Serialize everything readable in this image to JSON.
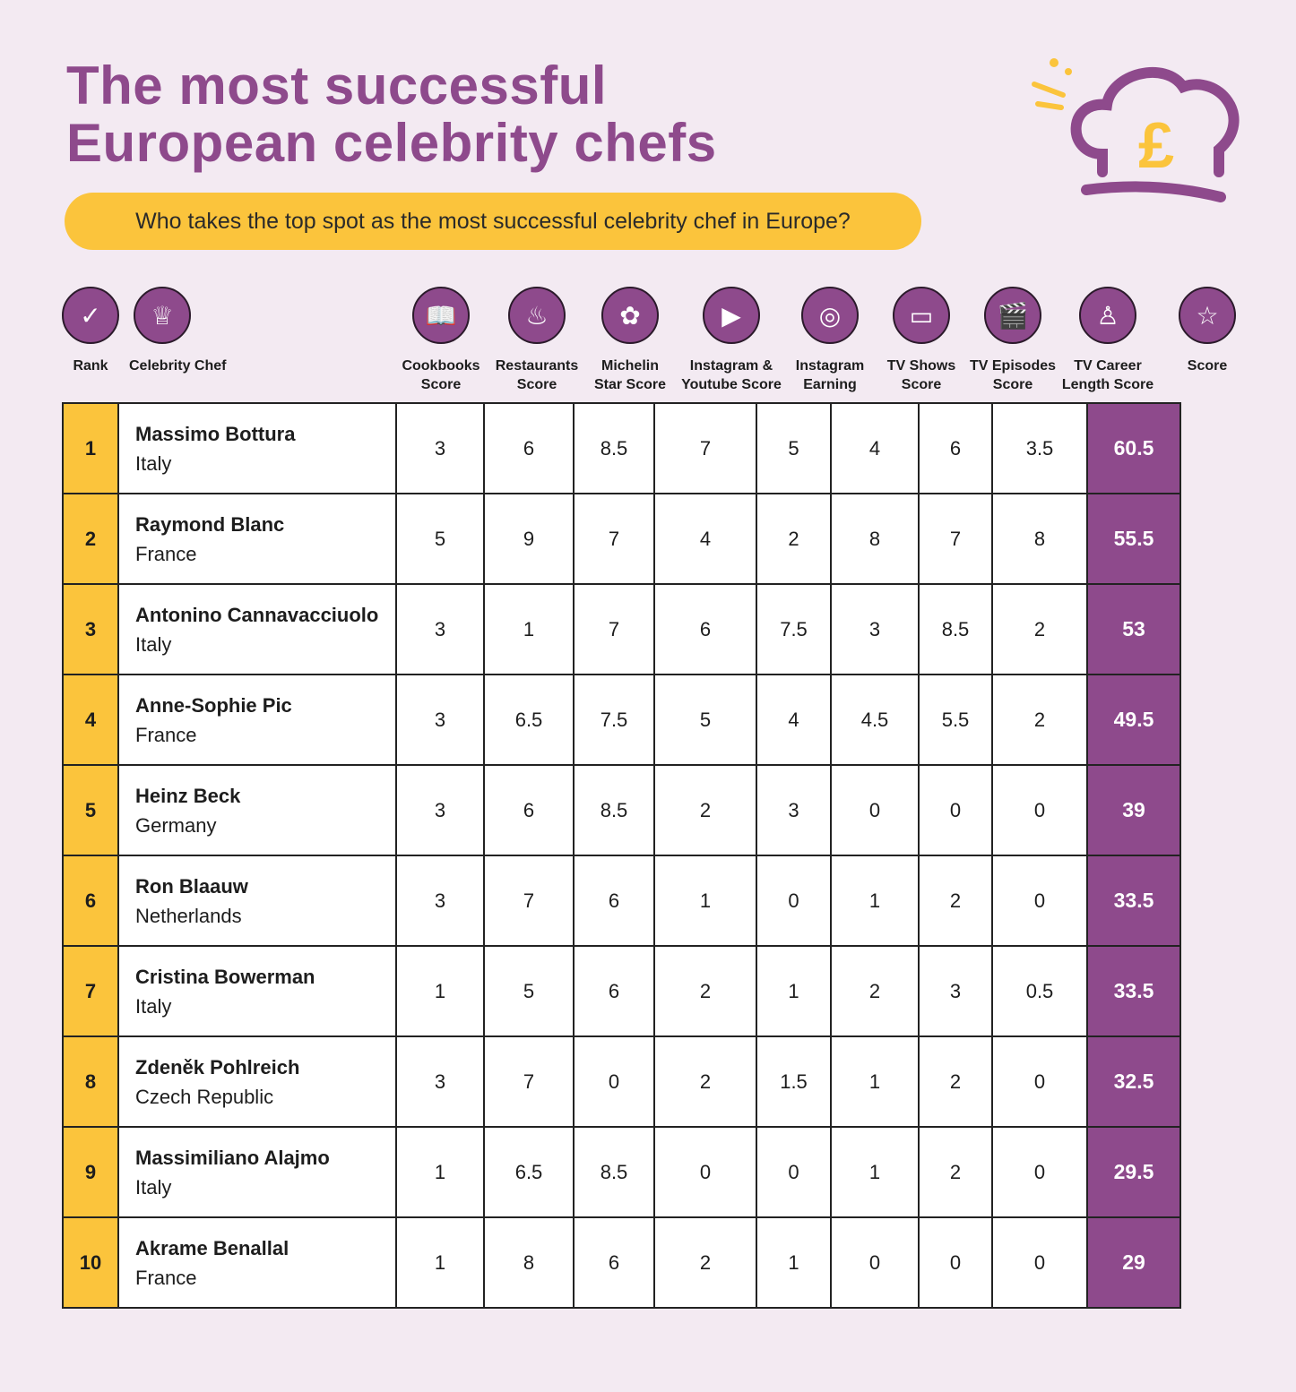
{
  "title_line1": "The most successful",
  "title_line2": "European celebrity chefs",
  "subtitle": "Who takes the top spot as the most successful celebrity chef in Europe?",
  "logo_symbol": "£",
  "colors": {
    "purple": "#8e4a8c",
    "yellow": "#fbc43c",
    "background": "#f3eaf2"
  },
  "chart_data": {
    "type": "table",
    "columns": [
      {
        "label1": "Rank",
        "label2": "",
        "icon": "check-icon"
      },
      {
        "label1": "Celebrity Chef",
        "label2": "",
        "icon": "chef-hat-icon"
      },
      {
        "label1": "Cookbooks",
        "label2": "Score",
        "icon": "book-icon"
      },
      {
        "label1": "Restaurants",
        "label2": "Score",
        "icon": "bowl-icon"
      },
      {
        "label1": "Michelin",
        "label2": "Star Score",
        "icon": "flower-icon"
      },
      {
        "label1": "Instagram &",
        "label2": "Youtube Score",
        "icon": "reels-icon"
      },
      {
        "label1": "Instagram",
        "label2": "Earning",
        "icon": "camera-icon"
      },
      {
        "label1": "TV Shows",
        "label2": "Score",
        "icon": "tv-icon"
      },
      {
        "label1": "TV Episodes",
        "label2": "Score",
        "icon": "clapper-icon"
      },
      {
        "label1": "TV Career",
        "label2": "Length Score",
        "icon": "chef-person-icon"
      },
      {
        "label1": "Score",
        "label2": "",
        "icon": "star-icon"
      }
    ],
    "rows": [
      {
        "rank": "1",
        "name": "Massimo Bottura",
        "country": "Italy",
        "values": [
          "3",
          "6",
          "8.5",
          "7",
          "5",
          "4",
          "6",
          "3.5"
        ],
        "score": "60.5"
      },
      {
        "rank": "2",
        "name": "Raymond Blanc",
        "country": "France",
        "values": [
          "5",
          "9",
          "7",
          "4",
          "2",
          "8",
          "7",
          "8"
        ],
        "score": "55.5"
      },
      {
        "rank": "3",
        "name": "Antonino Cannavacciuolo",
        "country": "Italy",
        "values": [
          "3",
          "1",
          "7",
          "6",
          "7.5",
          "3",
          "8.5",
          "2"
        ],
        "score": "53"
      },
      {
        "rank": "4",
        "name": "Anne-Sophie Pic",
        "country": "France",
        "values": [
          "3",
          "6.5",
          "7.5",
          "5",
          "4",
          "4.5",
          "5.5",
          "2"
        ],
        "score": "49.5"
      },
      {
        "rank": "5",
        "name": "Heinz Beck",
        "country": "Germany",
        "values": [
          "3",
          "6",
          "8.5",
          "2",
          "3",
          "0",
          "0",
          "0"
        ],
        "score": "39"
      },
      {
        "rank": "6",
        "name": "Ron Blaauw",
        "country": "Netherlands",
        "values": [
          "3",
          "7",
          "6",
          "1",
          "0",
          "1",
          "2",
          "0"
        ],
        "score": "33.5"
      },
      {
        "rank": "7",
        "name": "Cristina Bowerman",
        "country": "Italy",
        "values": [
          "1",
          "5",
          "6",
          "2",
          "1",
          "2",
          "3",
          "0.5"
        ],
        "score": "33.5"
      },
      {
        "rank": "8",
        "name": "Zdeněk Pohlreich",
        "country": "Czech Republic",
        "values": [
          "3",
          "7",
          "0",
          "2",
          "1.5",
          "1",
          "2",
          "0"
        ],
        "score": "32.5"
      },
      {
        "rank": "9",
        "name": "Massimiliano Alajmo",
        "country": "Italy",
        "values": [
          "1",
          "6.5",
          "8.5",
          "0",
          "0",
          "1",
          "2",
          "0"
        ],
        "score": "29.5"
      },
      {
        "rank": "10",
        "name": "Akrame Benallal",
        "country": "France",
        "values": [
          "1",
          "8",
          "6",
          "2",
          "1",
          "0",
          "0",
          "0"
        ],
        "score": "29"
      }
    ]
  }
}
